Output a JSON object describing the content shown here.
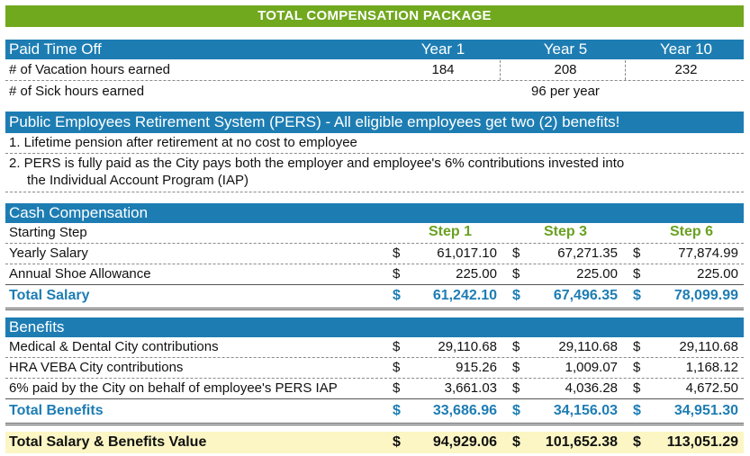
{
  "title": "TOTAL COMPENSATION PACKAGE",
  "pto": {
    "heading": "Paid Time Off",
    "years": [
      "Year 1",
      "Year 5",
      "Year 10"
    ],
    "vacation_label": "# of Vacation hours earned",
    "vacation_values": [
      "184",
      "208",
      "232"
    ],
    "sick_label": "# of Sick hours earned",
    "sick_value": "96 per year"
  },
  "pers": {
    "heading": "Public Employees Retirement System (PERS) - All eligible employees get two (2) benefits!",
    "item1": "1. Lifetime pension after retirement at no cost to employee",
    "item2_line1": "2.  PERS is fully paid as the City pays both the employer and employee's 6% contributions invested into",
    "item2_line2": "the Individual Account Program (IAP)"
  },
  "cash": {
    "heading": "Cash Compensation",
    "starting_step_label": "Starting Step",
    "steps": [
      "Step 1",
      "Step 3",
      "Step 6"
    ],
    "currency": "$",
    "rows": [
      {
        "label": "Yearly Salary",
        "values": [
          "61,017.10",
          "67,271.35",
          "77,874.99"
        ]
      },
      {
        "label": "Annual Shoe Allowance",
        "values": [
          "225.00",
          "225.00",
          "225.00"
        ]
      }
    ],
    "total_label": "Total Salary",
    "total_values": [
      "61,242.10",
      "67,496.35",
      "78,099.99"
    ]
  },
  "benefits": {
    "heading": "Benefits",
    "rows": [
      {
        "label": "Medical & Dental City contributions",
        "values": [
          "29,110.68",
          "29,110.68",
          "29,110.68"
        ]
      },
      {
        "label": "HRA VEBA City contributions",
        "values": [
          "915.26",
          "1,009.07",
          "1,168.12"
        ]
      },
      {
        "label": "6% paid by the City on behalf of employee's PERS IAP",
        "values": [
          "3,661.03",
          "4,036.28",
          "4,672.50"
        ]
      }
    ],
    "total_label": "Total Benefits",
    "total_values": [
      "33,686.96",
      "34,156.03",
      "34,951.30"
    ]
  },
  "grand": {
    "label": "Total Salary & Benefits Value",
    "values": [
      "94,929.06",
      "101,652.38",
      "113,051.29"
    ]
  },
  "colors": {
    "green_banner": "#70a81e",
    "blue_header": "#1d7db3",
    "green_step": "#6aa121",
    "grand_total_bg": "#fbf6c4"
  }
}
